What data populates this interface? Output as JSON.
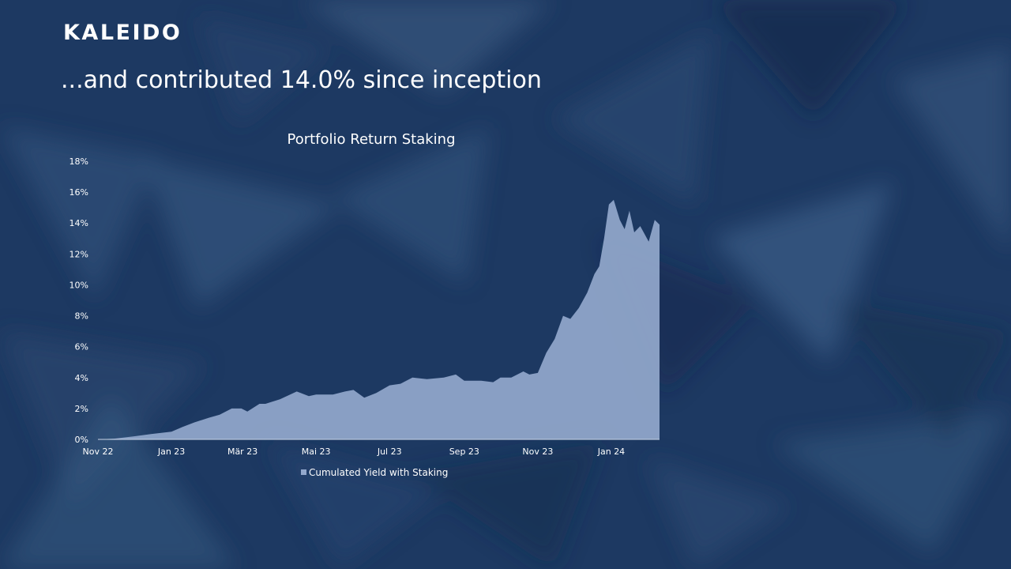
{
  "brand": {
    "logo_text": "KALEIDO"
  },
  "headline": "...and contributed 14.0% since inception",
  "colors": {
    "background": "#1e3a63",
    "area_fill": "#93a8cc",
    "text": "#ffffff"
  },
  "chart_data": {
    "type": "area",
    "title": "Portfolio Return Staking",
    "xlabel": "",
    "ylabel": "",
    "x_tick_labels": [
      "Nov 22",
      "Jan 23",
      "Mär 23",
      "Mai 23",
      "Jul 23",
      "Sep 23",
      "Nov 23",
      "Jan 24"
    ],
    "y_tick_labels": [
      "0%",
      "2%",
      "4%",
      "6%",
      "8%",
      "10%",
      "12%",
      "14%",
      "16%",
      "18%"
    ],
    "ylim": [
      0,
      18
    ],
    "xlim": [
      "2022-11-01",
      "2024-02-10"
    ],
    "grid": false,
    "legend": "bottom",
    "series": [
      {
        "name": "Cumulated Yield with Staking",
        "x": [
          "2022-11-01",
          "2022-11-15",
          "2022-12-01",
          "2022-12-15",
          "2023-01-01",
          "2023-01-10",
          "2023-01-20",
          "2023-02-01",
          "2023-02-10",
          "2023-02-20",
          "2023-02-28",
          "2023-03-05",
          "2023-03-15",
          "2023-03-20",
          "2023-04-01",
          "2023-04-15",
          "2023-04-25",
          "2023-05-01",
          "2023-05-15",
          "2023-05-25",
          "2023-06-01",
          "2023-06-10",
          "2023-06-20",
          "2023-07-01",
          "2023-07-10",
          "2023-07-20",
          "2023-08-01",
          "2023-08-15",
          "2023-08-25",
          "2023-09-01",
          "2023-09-15",
          "2023-09-25",
          "2023-10-01",
          "2023-10-10",
          "2023-10-20",
          "2023-10-25",
          "2023-11-01",
          "2023-11-08",
          "2023-11-15",
          "2023-11-22",
          "2023-11-28",
          "2023-12-05",
          "2023-12-12",
          "2023-12-18",
          "2023-12-22",
          "2023-12-26",
          "2023-12-30",
          "2024-01-03",
          "2024-01-08",
          "2024-01-12",
          "2024-01-16",
          "2024-01-20",
          "2024-01-25",
          "2024-02-01",
          "2024-02-06",
          "2024-02-10"
        ],
        "y": [
          0.0,
          0.05,
          0.2,
          0.35,
          0.5,
          0.8,
          1.1,
          1.4,
          1.6,
          2.0,
          2.0,
          1.8,
          2.3,
          2.3,
          2.6,
          3.1,
          2.8,
          2.9,
          2.9,
          3.1,
          3.2,
          2.7,
          3.0,
          3.5,
          3.6,
          4.0,
          3.9,
          4.0,
          4.2,
          3.8,
          3.8,
          3.7,
          4.0,
          4.0,
          4.4,
          4.2,
          4.3,
          5.6,
          6.5,
          8.0,
          7.8,
          8.5,
          9.5,
          10.7,
          11.2,
          13.0,
          15.2,
          15.5,
          14.2,
          13.6,
          14.8,
          13.4,
          13.8,
          12.8,
          14.2,
          13.9
        ]
      }
    ]
  }
}
